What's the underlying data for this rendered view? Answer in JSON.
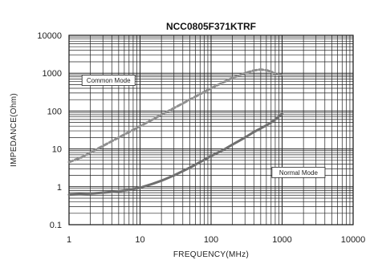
{
  "chart_data": {
    "type": "line",
    "title": "NCC0805F371KTRF",
    "xlabel": "FREQUENCY(MHz)",
    "ylabel": "IMPEDANCE(Ohm)",
    "x_scale": "log",
    "y_scale": "log",
    "xlim": [
      1,
      10000
    ],
    "ylim": [
      0.1,
      10000
    ],
    "x_ticks": [
      "1",
      "10",
      "100",
      "1000",
      "10000"
    ],
    "y_ticks": [
      "0.1",
      "1",
      "10",
      "100",
      "1000",
      "10000"
    ],
    "grid": true,
    "series": [
      {
        "name": "Common Mode",
        "color": "#909090",
        "style": "dashed",
        "x": [
          1,
          1.5,
          2,
          3,
          5,
          7,
          10,
          15,
          20,
          30,
          50,
          70,
          100,
          150,
          200,
          300,
          400,
          500,
          600,
          700,
          800,
          1000
        ],
        "y": [
          4.5,
          6,
          8,
          12,
          20,
          28,
          40,
          60,
          80,
          120,
          200,
          280,
          400,
          580,
          750,
          1000,
          1180,
          1250,
          1200,
          1100,
          950,
          900
        ]
      },
      {
        "name": "Normal Mode",
        "color": "#707070",
        "style": "solid",
        "x": [
          1,
          1.5,
          2,
          3,
          5,
          7,
          10,
          15,
          20,
          30,
          50,
          70,
          100,
          150,
          200,
          300,
          400,
          500,
          600,
          700,
          800,
          1000
        ],
        "y": [
          0.62,
          0.64,
          0.66,
          0.7,
          0.76,
          0.83,
          0.95,
          1.2,
          1.45,
          2.0,
          3.2,
          4.5,
          6.5,
          9.5,
          13,
          20,
          28,
          35,
          42,
          50,
          60,
          85
        ]
      }
    ],
    "annotations": [
      {
        "text": "Common Mode",
        "x": 3.6,
        "y": 650
      },
      {
        "text": "Normal Mode",
        "x": 1700,
        "y": 2.4
      }
    ]
  }
}
